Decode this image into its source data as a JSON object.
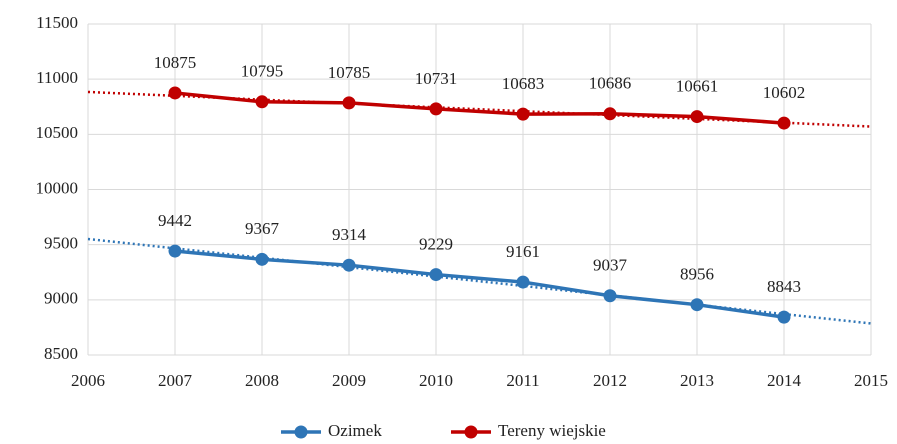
{
  "chart_data": {
    "type": "line",
    "x": [
      2007,
      2008,
      2009,
      2010,
      2011,
      2012,
      2013,
      2014
    ],
    "series": [
      {
        "name": "Ozimek",
        "color": "#2e75b6",
        "values": [
          9442,
          9367,
          9314,
          9229,
          9161,
          9037,
          8956,
          8843
        ]
      },
      {
        "name": "Tereny wiejskie",
        "color": "#c00000",
        "values": [
          10875,
          10795,
          10785,
          10731,
          10683,
          10686,
          10661,
          10602
        ]
      }
    ],
    "xlim": [
      2006,
      2015
    ],
    "xticks": [
      2006,
      2007,
      2008,
      2009,
      2010,
      2011,
      2012,
      2013,
      2014,
      2015
    ],
    "ylim": [
      8500,
      11500
    ],
    "yticks": [
      8500,
      9000,
      9500,
      10000,
      10500,
      11000,
      11500
    ],
    "grid": true,
    "trendline": true,
    "data_labels": true,
    "legend": "bottom"
  }
}
